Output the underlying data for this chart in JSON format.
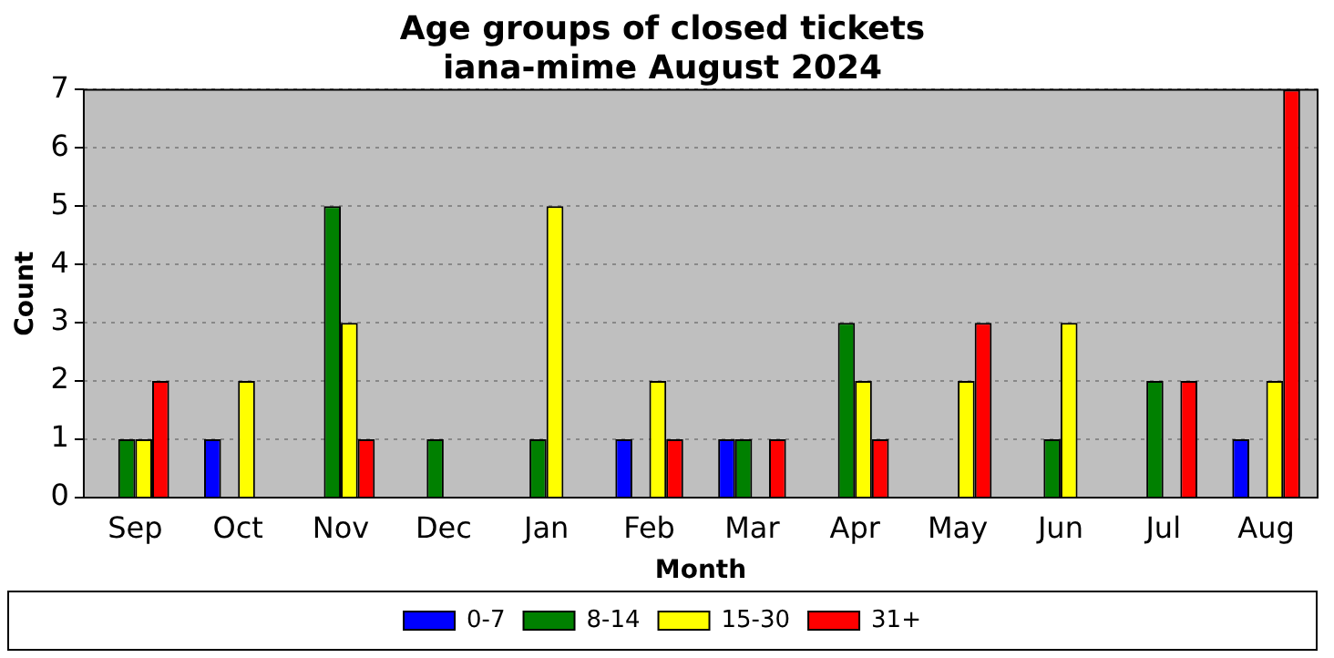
{
  "chart_data": {
    "type": "bar",
    "title": "Age groups of closed tickets",
    "subtitle": "iana-mime August 2024",
    "xlabel": "Month",
    "ylabel": "Count",
    "categories": [
      "Sep",
      "Oct",
      "Nov",
      "Dec",
      "Jan",
      "Feb",
      "Mar",
      "Apr",
      "May",
      "Jun",
      "Jul",
      "Aug"
    ],
    "series": [
      {
        "name": "0-7",
        "color": "#0000ff",
        "values": [
          0,
          1,
          0,
          0,
          0,
          1,
          1,
          0,
          0,
          0,
          0,
          1
        ]
      },
      {
        "name": "8-14",
        "color": "#008000",
        "values": [
          1,
          0,
          5,
          1,
          1,
          0,
          1,
          3,
          0,
          1,
          2,
          0
        ]
      },
      {
        "name": "15-30",
        "color": "#ffff00",
        "values": [
          1,
          2,
          3,
          0,
          5,
          2,
          0,
          2,
          2,
          3,
          0,
          2
        ]
      },
      {
        "name": "31+",
        "color": "#ff0000",
        "values": [
          2,
          0,
          1,
          0,
          0,
          1,
          1,
          1,
          3,
          0,
          2,
          7
        ]
      }
    ],
    "ylim": [
      0,
      7
    ],
    "yticks": [
      0,
      1,
      2,
      3,
      4,
      5,
      6,
      7
    ],
    "grid": "y",
    "legend": "bottom"
  }
}
